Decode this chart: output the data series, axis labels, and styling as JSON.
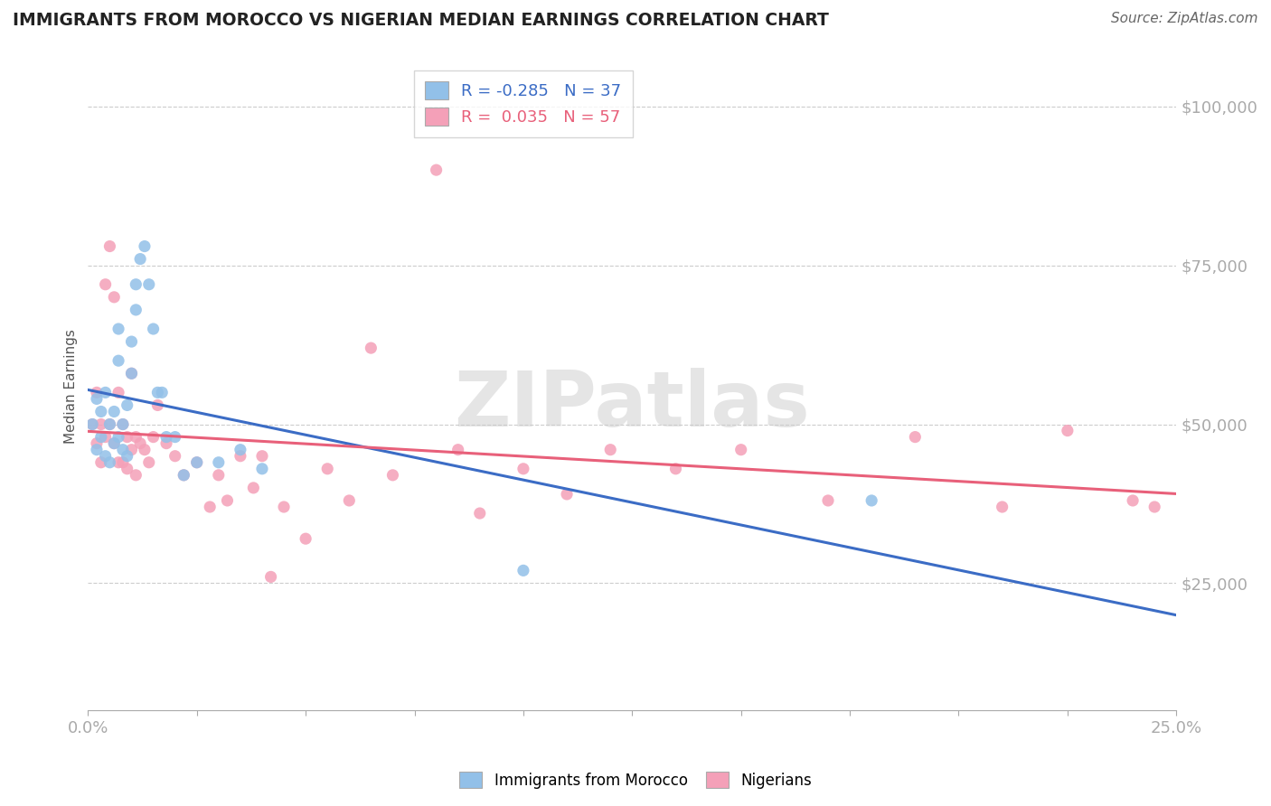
{
  "title": "IMMIGRANTS FROM MOROCCO VS NIGERIAN MEDIAN EARNINGS CORRELATION CHART",
  "source": "Source: ZipAtlas.com",
  "ylabel": "Median Earnings",
  "xlim": [
    0.0,
    0.25
  ],
  "ylim": [
    5000,
    107000
  ],
  "yticks": [
    25000,
    50000,
    75000,
    100000
  ],
  "ytick_labels": [
    "$25,000",
    "$50,000",
    "$75,000",
    "$100,000"
  ],
  "xticks": [
    0.0,
    0.025,
    0.05,
    0.075,
    0.1,
    0.125,
    0.15,
    0.175,
    0.2,
    0.225,
    0.25
  ],
  "xtick_labels": [
    "0.0%",
    "",
    "",
    "",
    "",
    "",
    "",
    "",
    "",
    "",
    "25.0%"
  ],
  "morocco_color": "#92C0E8",
  "nigeria_color": "#F4A0B8",
  "morocco_line_color": "#3B6CC5",
  "nigeria_line_color": "#E8607A",
  "background_color": "#FFFFFF",
  "watermark": "ZIPatlas",
  "morocco_R": "-0.285",
  "morocco_N": "37",
  "nigeria_R": "0.035",
  "nigeria_N": "57",
  "morocco_scatter_x": [
    0.001,
    0.002,
    0.002,
    0.003,
    0.003,
    0.004,
    0.004,
    0.005,
    0.005,
    0.006,
    0.006,
    0.007,
    0.007,
    0.007,
    0.008,
    0.008,
    0.009,
    0.009,
    0.01,
    0.01,
    0.011,
    0.011,
    0.012,
    0.013,
    0.014,
    0.015,
    0.016,
    0.017,
    0.018,
    0.02,
    0.022,
    0.025,
    0.03,
    0.035,
    0.04,
    0.1,
    0.18
  ],
  "morocco_scatter_y": [
    50000,
    54000,
    46000,
    52000,
    48000,
    55000,
    45000,
    50000,
    44000,
    52000,
    47000,
    65000,
    60000,
    48000,
    46000,
    50000,
    53000,
    45000,
    63000,
    58000,
    68000,
    72000,
    76000,
    78000,
    72000,
    65000,
    55000,
    55000,
    48000,
    48000,
    42000,
    44000,
    44000,
    46000,
    43000,
    27000,
    38000
  ],
  "nigeria_scatter_x": [
    0.001,
    0.002,
    0.002,
    0.003,
    0.003,
    0.004,
    0.004,
    0.005,
    0.005,
    0.006,
    0.006,
    0.007,
    0.007,
    0.008,
    0.008,
    0.009,
    0.009,
    0.01,
    0.01,
    0.011,
    0.011,
    0.012,
    0.013,
    0.014,
    0.015,
    0.016,
    0.018,
    0.02,
    0.022,
    0.025,
    0.028,
    0.03,
    0.032,
    0.035,
    0.038,
    0.04,
    0.042,
    0.045,
    0.05,
    0.055,
    0.06,
    0.065,
    0.07,
    0.08,
    0.085,
    0.09,
    0.1,
    0.11,
    0.12,
    0.135,
    0.15,
    0.17,
    0.19,
    0.21,
    0.225,
    0.24,
    0.245
  ],
  "nigeria_scatter_y": [
    50000,
    55000,
    47000,
    50000,
    44000,
    72000,
    48000,
    78000,
    50000,
    70000,
    47000,
    55000,
    44000,
    50000,
    44000,
    48000,
    43000,
    58000,
    46000,
    48000,
    42000,
    47000,
    46000,
    44000,
    48000,
    53000,
    47000,
    45000,
    42000,
    44000,
    37000,
    42000,
    38000,
    45000,
    40000,
    45000,
    26000,
    37000,
    32000,
    43000,
    38000,
    62000,
    42000,
    90000,
    46000,
    36000,
    43000,
    39000,
    46000,
    43000,
    46000,
    38000,
    48000,
    37000,
    49000,
    38000,
    37000
  ]
}
